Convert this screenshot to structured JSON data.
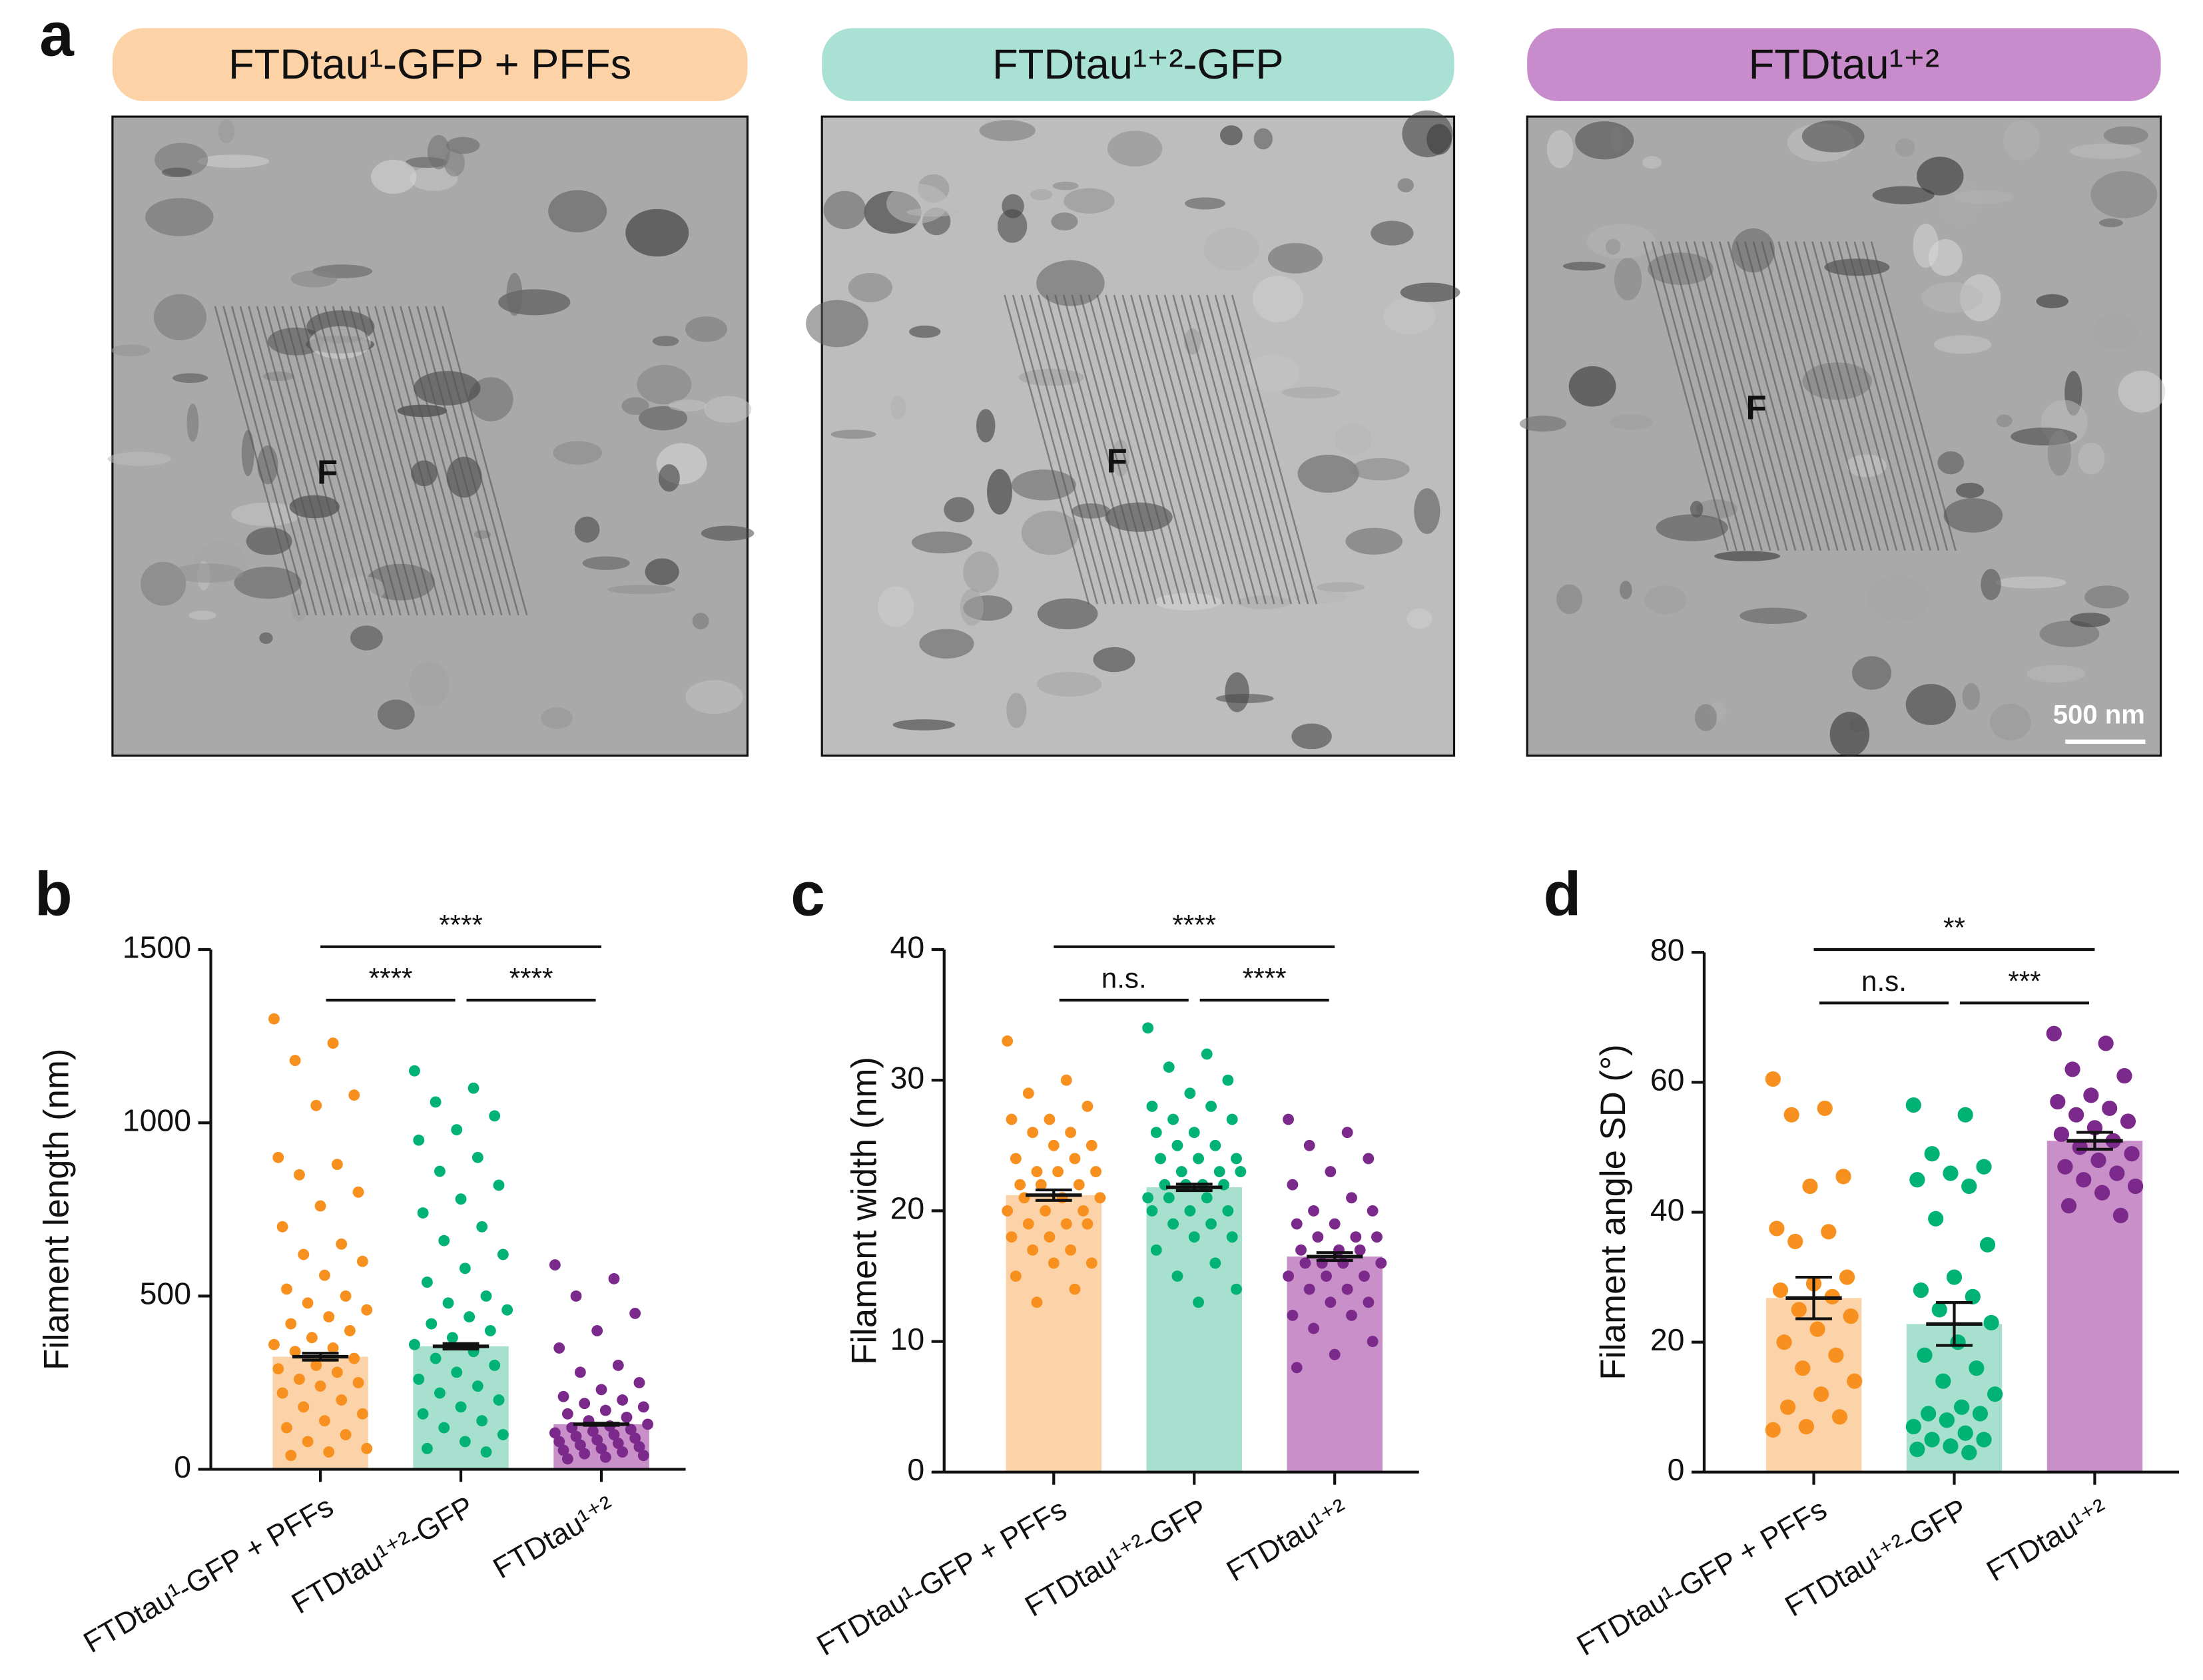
{
  "panel_a": {
    "label": "a",
    "conditions": [
      "FTDtau¹-GFP + PFFs",
      "FTDtau¹⁺²-GFP",
      "FTDtau¹⁺²"
    ],
    "condition_colors": [
      "#fcd2a6",
      "#a9e1d5",
      "#c88bcb"
    ],
    "image_labels": [
      "F",
      "F",
      "F"
    ],
    "scale_bar": "500 nm"
  },
  "chart_data": [
    {
      "type": "bar",
      "label": "b",
      "y_label": "Filament length (nm)",
      "categories": [
        "FTDtau¹-GFP + PFFs",
        "FTDtau¹⁺²-GFP",
        "FTDtau¹⁺²"
      ],
      "values": [
        325,
        355,
        130
      ],
      "errors": [
        10,
        8,
        3
      ],
      "bar_colors": [
        "#fcd3a8",
        "#a7e0cf",
        "#c98fc8"
      ],
      "point_colors": [
        "#f7901e",
        "#00b374",
        "#7b2a8c"
      ],
      "points": [
        [
          1300,
          1230,
          1180,
          1080,
          1050,
          900,
          880,
          850,
          800,
          760,
          700,
          650,
          620,
          600,
          560,
          520,
          500,
          480,
          460,
          440,
          420,
          400,
          380,
          360,
          350,
          340,
          320,
          300,
          290,
          280,
          260,
          250,
          240,
          220,
          200,
          180,
          160,
          140,
          120,
          100,
          80,
          60,
          50,
          40
        ],
        [
          1150,
          1100,
          1060,
          1020,
          980,
          950,
          900,
          860,
          820,
          780,
          740,
          700,
          660,
          620,
          580,
          540,
          500,
          480,
          460,
          440,
          420,
          400,
          380,
          360,
          340,
          320,
          300,
          280,
          260,
          240,
          220,
          200,
          180,
          160,
          140,
          120,
          100,
          80,
          60,
          50
        ],
        [
          590,
          550,
          500,
          450,
          400,
          350,
          300,
          280,
          250,
          230,
          210,
          200,
          190,
          180,
          170,
          160,
          150,
          140,
          130,
          125,
          120,
          115,
          110,
          105,
          100,
          95,
          90,
          85,
          80,
          75,
          70,
          65,
          60,
          55,
          50,
          45,
          40,
          35,
          30
        ]
      ],
      "ylim": [
        0,
        1500
      ],
      "yticks": [
        0,
        500,
        1000,
        1500
      ],
      "comparisons": [
        {
          "from": 0,
          "to": 2,
          "label": "****"
        },
        {
          "from": 0,
          "to": 1,
          "label": "****"
        },
        {
          "from": 1,
          "to": 2,
          "label": "****"
        }
      ]
    },
    {
      "type": "bar",
      "label": "c",
      "y_label": "Filament width (nm)",
      "categories": [
        "FTDtau¹-GFP + PFFs",
        "FTDtau¹⁺²-GFP",
        "FTDtau¹⁺²"
      ],
      "values": [
        21.2,
        21.8,
        16.5
      ],
      "errors": [
        0.4,
        0.25,
        0.3
      ],
      "bar_colors": [
        "#fcd3a8",
        "#a7e0cf",
        "#c98fc8"
      ],
      "point_colors": [
        "#f7901e",
        "#00b374",
        "#7b2a8c"
      ],
      "points": [
        [
          33,
          30,
          29,
          28,
          27,
          27,
          26,
          26,
          25,
          25,
          24,
          24,
          23,
          23,
          23,
          22,
          22,
          22,
          21,
          21,
          21,
          20,
          20,
          20,
          19,
          19,
          19,
          18,
          18,
          17,
          17,
          16,
          16,
          15,
          14,
          13
        ],
        [
          34,
          32,
          31,
          30,
          29,
          28,
          28,
          27,
          27,
          26,
          26,
          25,
          25,
          24,
          24,
          24,
          23,
          23,
          23,
          22,
          22,
          22,
          22,
          21,
          21,
          21,
          20,
          20,
          20,
          19,
          19,
          18,
          18,
          17,
          16,
          15,
          14,
          13
        ],
        [
          27,
          26,
          25,
          24,
          23,
          22,
          21,
          20,
          20,
          19,
          19,
          18,
          18,
          18,
          17,
          17,
          17,
          16,
          16,
          16,
          16,
          15,
          15,
          15,
          14,
          14,
          13,
          13,
          12,
          12,
          11,
          10,
          9,
          8
        ]
      ],
      "ylim": [
        0,
        40
      ],
      "yticks": [
        0,
        10,
        20,
        30,
        40
      ],
      "comparisons": [
        {
          "from": 0,
          "to": 2,
          "label": "****"
        },
        {
          "from": 0,
          "to": 1,
          "label": "n.s."
        },
        {
          "from": 1,
          "to": 2,
          "label": "****"
        }
      ]
    },
    {
      "type": "bar",
      "label": "d",
      "y_label": "Filament angle SD (°)",
      "categories": [
        "FTDtau¹-GFP + PFFs",
        "FTDtau¹⁺²-GFP",
        "FTDtau¹⁺²"
      ],
      "values": [
        26.8,
        22.8,
        51
      ],
      "errors": [
        3.2,
        3.3,
        1.3
      ],
      "bar_colors": [
        "#fcd3a8",
        "#a7e0cf",
        "#c98fc8"
      ],
      "point_colors": [
        "#f7901e",
        "#00b374",
        "#7b2a8c"
      ],
      "points": [
        [
          60.5,
          56,
          55,
          45.5,
          44,
          37.5,
          37,
          35.5,
          30,
          29,
          28,
          27,
          25,
          24,
          22,
          20,
          18,
          16,
          14,
          12,
          10,
          8.5,
          7,
          6.5
        ],
        [
          56.5,
          55,
          49,
          47,
          46,
          45,
          44,
          39,
          35,
          30,
          28,
          27,
          25,
          23,
          20,
          18,
          16,
          14,
          12,
          10,
          9,
          9,
          8,
          7,
          6,
          5,
          5,
          4,
          3.5,
          3
        ],
        [
          67.5,
          66,
          62,
          61,
          58,
          57,
          56,
          55,
          54,
          53,
          52,
          51,
          50,
          49,
          48,
          47,
          46,
          45,
          44,
          43,
          41,
          39.5
        ]
      ],
      "ylim": [
        0,
        80
      ],
      "yticks": [
        0,
        20,
        40,
        60,
        80
      ],
      "comparisons": [
        {
          "from": 0,
          "to": 2,
          "label": "**"
        },
        {
          "from": 0,
          "to": 1,
          "label": "n.s."
        },
        {
          "from": 1,
          "to": 2,
          "label": "***"
        }
      ]
    }
  ]
}
